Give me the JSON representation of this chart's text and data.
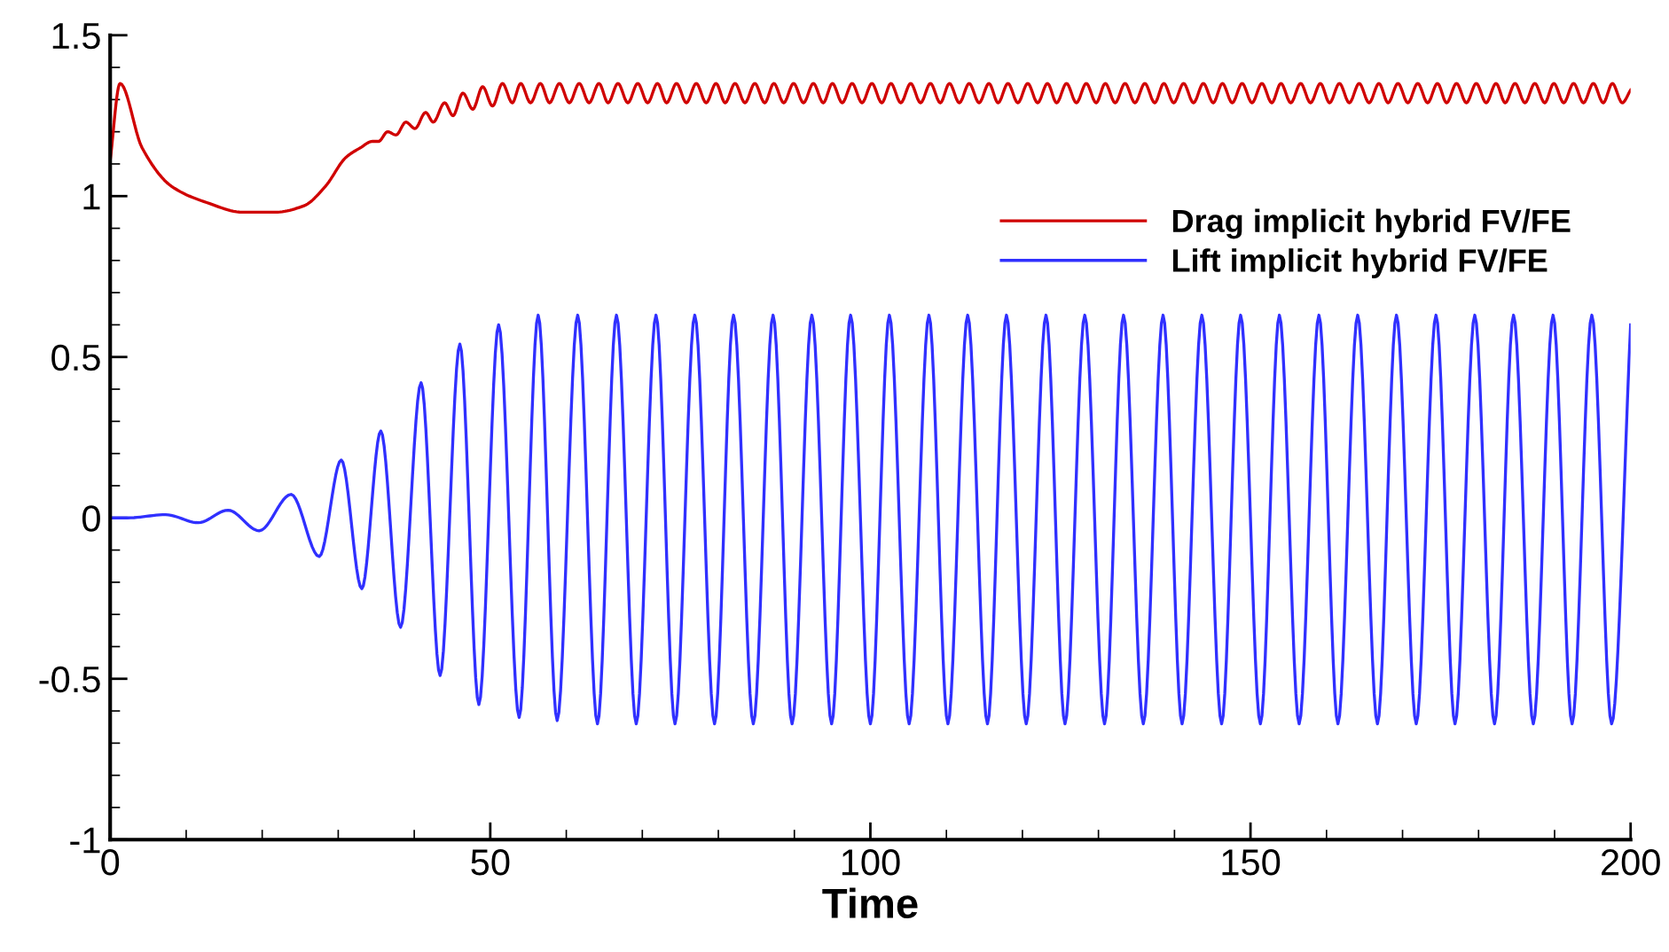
{
  "chart_data": {
    "type": "line",
    "xlabel": "Time",
    "xlim": [
      0,
      200
    ],
    "xticks": [
      0,
      50,
      100,
      150,
      200
    ],
    "ylim": [
      -1,
      1.5
    ],
    "yticks": [
      -1,
      -0.5,
      0,
      0.5,
      1,
      1.5
    ],
    "grid": false,
    "legend": "top right",
    "marker": "none",
    "line_style": "solid",
    "series": [
      {
        "name": "Drag implicit hybrid FV/FE",
        "color": "#d00000",
        "x": [
          0,
          1.3,
          4.2,
          8.1,
          12.7,
          17.4,
          21.7,
          25.5,
          28.3,
          31.0,
          32.9,
          34.5,
          35.3,
          36.5,
          37.6,
          38.9,
          40.1,
          41.5,
          42.5,
          44.0,
          45.1,
          46.4,
          47.7,
          49.0,
          50.3,
          51.6,
          52.9,
          54.0,
          55.3,
          56.6,
          57.8,
          59.1,
          60.4,
          61.7,
          63.0,
          64.3,
          65.5,
          66.8,
          68.1,
          69.4,
          70.7,
          72.0,
          73.2,
          74.5,
          75.8,
          77.1,
          78.4,
          79.7,
          80.9,
          82.2,
          83.5,
          84.8,
          86.1,
          87.3,
          88.6,
          89.9,
          91.2,
          92.5,
          93.8,
          95.0,
          96.3,
          97.6,
          98.9,
          100.2,
          101.5,
          102.7,
          104.0,
          105.3,
          106.6,
          107.9,
          109.2,
          110.4,
          111.7,
          113.0,
          114.3,
          115.6,
          116.8,
          118.1,
          119.4,
          120.7,
          122.0,
          123.3,
          124.5,
          125.8,
          127.1,
          128.4,
          129.7,
          130.9,
          132.2,
          133.5,
          134.8,
          136.1,
          137.4,
          138.6,
          139.9,
          141.2,
          142.5,
          143.8,
          145.1,
          146.3,
          147.6,
          148.9,
          150.2,
          151.5,
          152.8,
          154.0,
          155.3,
          156.6,
          157.9,
          159.2,
          160.4,
          161.7,
          163.0,
          164.3,
          165.6,
          166.9,
          168.1,
          169.4,
          170.7,
          172.0,
          173.3,
          174.6,
          175.8,
          177.1,
          178.4,
          179.7,
          181.0,
          182.3,
          183.5,
          184.8,
          186.1,
          187.4,
          188.7,
          189.9,
          191.2,
          192.5,
          193.8,
          195.1,
          196.4,
          197.6,
          198.9,
          200
        ],
        "values": [
          1.11,
          1.35,
          1.15,
          1.03,
          0.98,
          0.95,
          0.95,
          0.97,
          1.03,
          1.12,
          1.15,
          1.17,
          1.17,
          1.2,
          1.19,
          1.23,
          1.21,
          1.26,
          1.23,
          1.29,
          1.25,
          1.32,
          1.27,
          1.34,
          1.28,
          1.35,
          1.29,
          1.35,
          1.29,
          1.35,
          1.29,
          1.35,
          1.29,
          1.35,
          1.29,
          1.35,
          1.29,
          1.35,
          1.29,
          1.35,
          1.29,
          1.35,
          1.29,
          1.35,
          1.29,
          1.35,
          1.29,
          1.35,
          1.29,
          1.35,
          1.29,
          1.35,
          1.29,
          1.35,
          1.29,
          1.35,
          1.29,
          1.35,
          1.29,
          1.35,
          1.29,
          1.35,
          1.29,
          1.35,
          1.29,
          1.35,
          1.29,
          1.35,
          1.29,
          1.35,
          1.29,
          1.35,
          1.29,
          1.35,
          1.29,
          1.35,
          1.29,
          1.35,
          1.29,
          1.35,
          1.29,
          1.35,
          1.29,
          1.35,
          1.29,
          1.35,
          1.29,
          1.35,
          1.29,
          1.35,
          1.29,
          1.35,
          1.29,
          1.35,
          1.29,
          1.35,
          1.29,
          1.35,
          1.29,
          1.35,
          1.29,
          1.35,
          1.29,
          1.35,
          1.29,
          1.35,
          1.29,
          1.35,
          1.29,
          1.35,
          1.29,
          1.35,
          1.29,
          1.35,
          1.29,
          1.35,
          1.29,
          1.35,
          1.29,
          1.35,
          1.29,
          1.35,
          1.29,
          1.35,
          1.29,
          1.35,
          1.29,
          1.35,
          1.29,
          1.35,
          1.29,
          1.35,
          1.29,
          1.35,
          1.29,
          1.35,
          1.29,
          1.35,
          1.29,
          1.35,
          1.29,
          1.33
        ]
      },
      {
        "name": "Lift implicit hybrid FV/FE",
        "color": "#3030ff",
        "x": [
          0,
          2.3,
          7.3,
          11.6,
          15.5,
          19.6,
          23.8,
          27.5,
          30.4,
          33.1,
          35.6,
          38.2,
          40.9,
          43.4,
          46.0,
          48.5,
          51.1,
          53.8,
          56.3,
          58.8,
          61.5,
          64.1,
          66.6,
          69.2,
          71.8,
          74.3,
          76.9,
          79.5,
          82.0,
          84.6,
          87.2,
          89.7,
          92.3,
          94.9,
          97.4,
          100.0,
          102.5,
          105.1,
          107.7,
          110.2,
          112.8,
          115.4,
          117.9,
          120.5,
          123.1,
          125.6,
          128.2,
          130.8,
          133.3,
          135.9,
          138.5,
          141.0,
          143.6,
          146.2,
          148.7,
          151.3,
          153.8,
          156.4,
          159.0,
          161.5,
          164.1,
          166.7,
          169.2,
          171.8,
          174.4,
          176.9,
          179.5,
          182.1,
          184.6,
          187.2,
          189.8,
          192.3,
          194.9,
          197.5,
          200
        ],
        "values": [
          0,
          0,
          0.01,
          -0.015,
          0.024,
          -0.04,
          0.073,
          -0.12,
          0.18,
          -0.22,
          0.27,
          -0.34,
          0.42,
          -0.49,
          0.54,
          -0.58,
          0.6,
          -0.62,
          0.63,
          -0.63,
          0.63,
          -0.64,
          0.63,
          -0.64,
          0.63,
          -0.64,
          0.63,
          -0.64,
          0.63,
          -0.64,
          0.63,
          -0.64,
          0.63,
          -0.64,
          0.63,
          -0.64,
          0.63,
          -0.64,
          0.63,
          -0.64,
          0.63,
          -0.64,
          0.63,
          -0.64,
          0.63,
          -0.64,
          0.63,
          -0.64,
          0.63,
          -0.64,
          0.63,
          -0.64,
          0.63,
          -0.64,
          0.63,
          -0.64,
          0.63,
          -0.64,
          0.63,
          -0.64,
          0.63,
          -0.64,
          0.63,
          -0.64,
          0.63,
          -0.64,
          0.63,
          -0.64,
          0.63,
          -0.64,
          0.63,
          -0.64,
          0.63,
          -0.64,
          0.6
        ]
      }
    ]
  }
}
